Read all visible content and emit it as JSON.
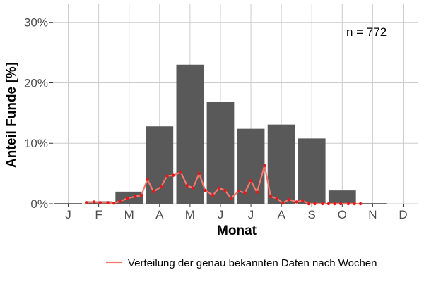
{
  "chart_data": {
    "type": "bar",
    "categories": [
      "J",
      "F",
      "M",
      "A",
      "M",
      "J",
      "J",
      "A",
      "S",
      "O",
      "N",
      "D"
    ],
    "series": [
      {
        "values": [
          0.1,
          0.4,
          2.0,
          12.8,
          23.0,
          16.8,
          12.4,
          13.1,
          10.8,
          2.2,
          0.1,
          0.0
        ],
        "color": "#595959"
      },
      {
        "name": "Verteilung der genau bekannten Daten nach Wochen",
        "type": "line",
        "color": "#f8766d",
        "point_color": "#e31a1c",
        "x": [
          1.6,
          1.85,
          2.05,
          2.3,
          2.5,
          2.7,
          2.95,
          3.2,
          3.4,
          3.6,
          3.8,
          4.05,
          4.25,
          4.45,
          4.7,
          4.9,
          5.1,
          5.3,
          5.5,
          5.75,
          5.95,
          6.15,
          6.35,
          6.6,
          6.8,
          7.0,
          7.2,
          7.45,
          7.65,
          7.85,
          8.05,
          8.25,
          8.5,
          8.7,
          8.9,
          9.1,
          9.35,
          9.55,
          9.75,
          9.95,
          10.2,
          10.4,
          10.6
        ],
        "values": [
          0.2,
          0.3,
          0.2,
          0.2,
          0.1,
          0.4,
          0.9,
          1.2,
          1.4,
          4.0,
          2.0,
          2.8,
          4.6,
          4.7,
          5.2,
          3.0,
          2.6,
          5.0,
          2.2,
          1.4,
          2.6,
          2.2,
          0.9,
          2.1,
          1.8,
          3.8,
          1.9,
          6.3,
          1.2,
          0.9,
          0.1,
          0.7,
          0.3,
          0.5,
          0.0,
          0.0,
          0.0,
          0.0,
          0.0,
          0.0,
          0.0,
          0.0,
          0.0
        ]
      }
    ],
    "yticks": [
      0,
      10,
      20,
      30
    ],
    "ytick_labels": [
      "0%",
      "10%",
      "20%",
      "30%"
    ],
    "ylim": [
      0,
      33
    ],
    "xlabel": "Monat",
    "ylabel": "Anteil Funde [%]",
    "annotation": "n = 772",
    "grid": true,
    "legend": {
      "position": "bottom",
      "entries": [
        "Verteilung der genau bekannten Daten nach Wochen"
      ]
    }
  }
}
